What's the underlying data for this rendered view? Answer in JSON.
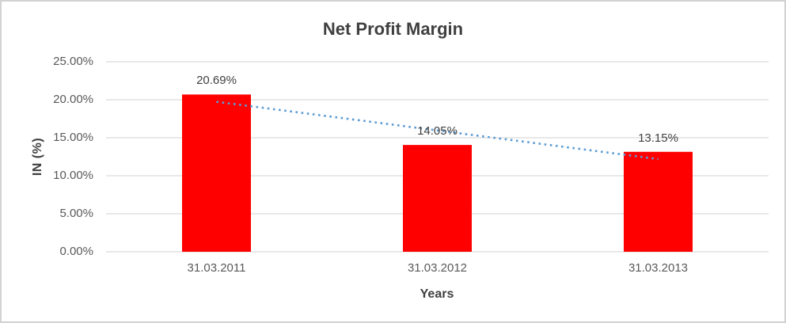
{
  "window": {
    "background": "#ffffff",
    "border_color": "#d2d2d2"
  },
  "chart_data": {
    "type": "bar",
    "title": "Net Profit Margin",
    "xlabel": "Years",
    "ylabel": "IN (%)",
    "categories": [
      "31.03.2011",
      "31.03.2012",
      "31.03.2013"
    ],
    "values": [
      20.69,
      14.05,
      13.15
    ],
    "data_labels": [
      "20.69%",
      "14.05%",
      "13.15%"
    ],
    "ylim": [
      0,
      25
    ],
    "ytick_step": 5,
    "ytick_labels": [
      "0.00%",
      "5.00%",
      "10.00%",
      "15.00%",
      "20.00%",
      "25.00%"
    ],
    "grid": true,
    "legend": "none",
    "bar_color": "#ff0000",
    "gridline_color": "#d9d9d9",
    "axis_text_color": "#595959",
    "title_color": "#404040",
    "trendline": {
      "type": "linear",
      "style": "dotted",
      "color": "#5b9bd5"
    }
  }
}
